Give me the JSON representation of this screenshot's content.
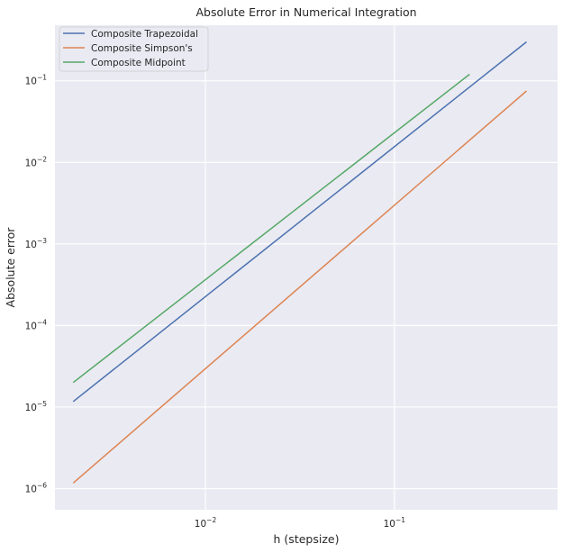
{
  "chart_data": {
    "type": "line",
    "title": "Absolute Error in Numerical Integration",
    "xlabel": "h (stepsize)",
    "ylabel": "Absolute error",
    "xscale": "log",
    "yscale": "log",
    "xlim": [
      0.0016,
      0.73
    ],
    "ylim": [
      5.5e-07,
      0.48
    ],
    "grid": true,
    "legend_position": "top-left",
    "x_ticks": [
      {
        "value": 0.01,
        "base": "10",
        "exp": "−2"
      },
      {
        "value": 0.1,
        "base": "10",
        "exp": "−1"
      }
    ],
    "y_ticks": [
      {
        "value": 1e-06,
        "base": "10",
        "exp": "−6"
      },
      {
        "value": 1e-05,
        "base": "10",
        "exp": "−5"
      },
      {
        "value": 0.0001,
        "base": "10",
        "exp": "−4"
      },
      {
        "value": 0.001,
        "base": "10",
        "exp": "−3"
      },
      {
        "value": 0.01,
        "base": "10",
        "exp": "−2"
      },
      {
        "value": 0.1,
        "base": "10",
        "exp": "−1"
      }
    ],
    "series": [
      {
        "name": "Composite Trapezoidal",
        "color": "#4c72b0",
        "x": [
          0.002,
          0.5
        ],
        "y": [
          1.17e-05,
          0.3
        ]
      },
      {
        "name": "Composite Simpson's",
        "color": "#dd8452",
        "x": [
          0.002,
          0.5
        ],
        "y": [
          1.17e-06,
          0.075
        ]
      },
      {
        "name": "Composite Midpoint",
        "color": "#55a868",
        "x": [
          0.002,
          0.25
        ],
        "y": [
          2e-05,
          0.12
        ]
      }
    ]
  }
}
